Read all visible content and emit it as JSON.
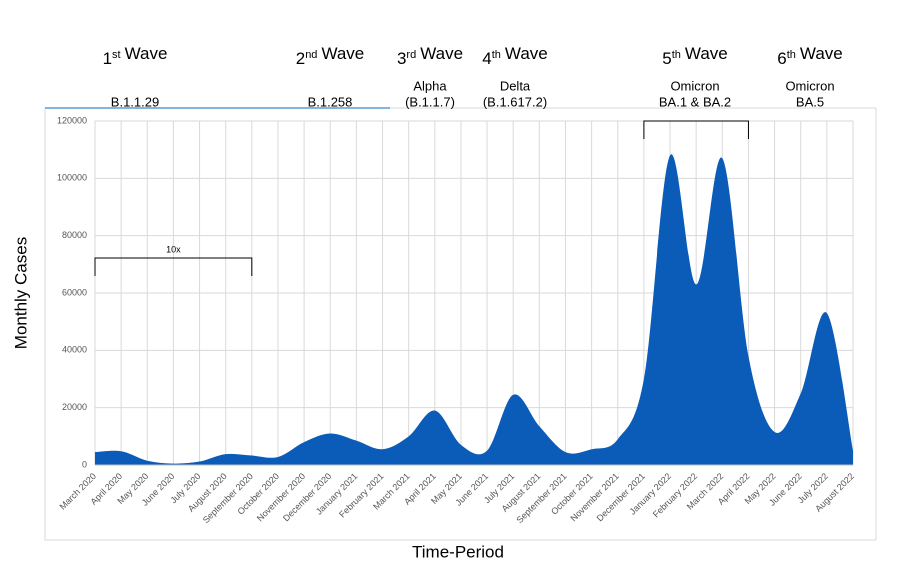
{
  "chart_data": {
    "type": "area",
    "categories": [
      "March 2020",
      "April 2020",
      "May 2020",
      "June 2020",
      "July 2020",
      "August 2020",
      "September 2020",
      "October 2020",
      "November 2020",
      "December 2020",
      "January 2021",
      "February 2021",
      "March 2021",
      "April 2021",
      "May 2021",
      "June 2021",
      "July 2021",
      "August 2021",
      "September 2021",
      "October 2021",
      "November 2021",
      "December 2021",
      "January 2022",
      "February 2022",
      "March 2022",
      "April 2022",
      "May 2022",
      "June 2022",
      "July 2022",
      "August 2022"
    ],
    "values": [
      4500,
      4800,
      1500,
      500,
      1200,
      3800,
      3300,
      2800,
      8000,
      11000,
      8500,
      5500,
      10000,
      19000,
      7000,
      5000,
      24500,
      13500,
      4500,
      5500,
      9000,
      30000,
      108000,
      63000,
      107000,
      38000,
      11500,
      25000,
      53000,
      5000
    ],
    "color": "#0a5cb8",
    "ylim": [
      0,
      120000
    ],
    "yticks": [
      0,
      20000,
      40000,
      60000,
      80000,
      100000,
      120000
    ],
    "grid": true,
    "y_label": "Monthly Cases",
    "x_label": "Time-Period",
    "bracket_label": "10x",
    "waves": [
      {
        "n": "1",
        "sup": "st",
        "text": "Wave",
        "lines": [
          "B.1.1.29"
        ]
      },
      {
        "n": "2",
        "sup": "nd",
        "text": "Wave",
        "lines": [
          "B.1.258"
        ]
      },
      {
        "n": "3",
        "sup": "rd",
        "text": "Wave",
        "lines": [
          "Alpha",
          "(B.1.1.7)"
        ]
      },
      {
        "n": "4",
        "sup": "th",
        "text": "Wave",
        "lines": [
          "Delta",
          "(B.1.617.2)"
        ]
      },
      {
        "n": "5",
        "sup": "th",
        "text": "Wave",
        "lines": [
          "Omicron",
          "BA.1 & BA.2"
        ]
      },
      {
        "n": "6",
        "sup": "th",
        "text": "Wave",
        "lines": [
          "Omicron",
          "BA.5"
        ]
      }
    ]
  }
}
